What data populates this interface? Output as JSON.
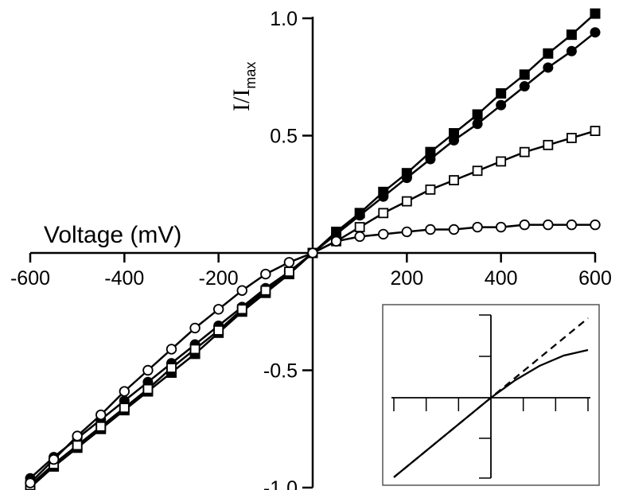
{
  "chart_data": [
    {
      "type": "line",
      "title": "",
      "xlabel": "Voltage (mV)",
      "ylabel_main": "I/I",
      "ylabel_sub": "max",
      "xlim": [
        -600,
        600
      ],
      "ylim": [
        -1.0,
        1.0
      ],
      "x_ticks": [
        -600,
        -400,
        -200,
        200,
        400,
        600
      ],
      "x_tick_labels": [
        "-600",
        "-400",
        "-200",
        "200",
        "400",
        "600"
      ],
      "y_ticks": [
        1.0,
        0.5,
        -0.5,
        -1.0
      ],
      "y_tick_labels": [
        "1.0",
        "0.5",
        "-0.5",
        "-1.0"
      ],
      "grid": false,
      "series": [
        {
          "marker": "filled-square",
          "x": [
            -600,
            -550,
            -500,
            -450,
            -400,
            -350,
            -300,
            -250,
            -200,
            -150,
            -100,
            -50,
            0,
            50,
            100,
            150,
            200,
            250,
            300,
            350,
            400,
            450,
            500,
            550,
            600
          ],
          "y": [
            -1.0,
            -0.91,
            -0.83,
            -0.75,
            -0.67,
            -0.59,
            -0.51,
            -0.43,
            -0.34,
            -0.25,
            -0.17,
            -0.09,
            0,
            0.09,
            0.17,
            0.26,
            0.34,
            0.43,
            0.51,
            0.59,
            0.68,
            0.76,
            0.85,
            0.93,
            1.02
          ]
        },
        {
          "marker": "filled-circle",
          "x": [
            -600,
            -550,
            -500,
            -450,
            -400,
            -350,
            -300,
            -250,
            -200,
            -150,
            -100,
            -50,
            0,
            50,
            100,
            150,
            200,
            250,
            300,
            350,
            400,
            450,
            500,
            550,
            600
          ],
          "y": [
            -0.96,
            -0.87,
            -0.79,
            -0.71,
            -0.63,
            -0.55,
            -0.47,
            -0.39,
            -0.31,
            -0.23,
            -0.15,
            -0.08,
            0,
            0.08,
            0.16,
            0.24,
            0.32,
            0.4,
            0.48,
            0.55,
            0.63,
            0.71,
            0.79,
            0.86,
            0.94
          ]
        },
        {
          "marker": "open-square",
          "x": [
            -600,
            -550,
            -500,
            -450,
            -400,
            -350,
            -300,
            -250,
            -200,
            -150,
            -100,
            -50,
            0,
            50,
            100,
            150,
            200,
            250,
            300,
            350,
            400,
            450,
            500,
            550,
            600
          ],
          "y": [
            -0.99,
            -0.9,
            -0.82,
            -0.74,
            -0.66,
            -0.58,
            -0.49,
            -0.41,
            -0.33,
            -0.24,
            -0.16,
            -0.08,
            0,
            0.05,
            0.11,
            0.17,
            0.22,
            0.27,
            0.31,
            0.35,
            0.39,
            0.43,
            0.46,
            0.49,
            0.52
          ]
        },
        {
          "marker": "open-circle",
          "x": [
            -600,
            -550,
            -500,
            -450,
            -400,
            -350,
            -300,
            -250,
            -200,
            -150,
            -100,
            -50,
            0,
            50,
            100,
            150,
            200,
            250,
            300,
            350,
            400,
            450,
            500,
            550,
            600
          ],
          "y": [
            -0.98,
            -0.88,
            -0.78,
            -0.69,
            -0.59,
            -0.5,
            -0.41,
            -0.32,
            -0.24,
            -0.16,
            -0.09,
            -0.04,
            0,
            0.05,
            0.07,
            0.08,
            0.09,
            0.1,
            0.1,
            0.11,
            0.11,
            0.12,
            0.12,
            0.12,
            0.12
          ]
        }
      ]
    },
    {
      "type": "line",
      "inset": true,
      "title": "",
      "xlabel": "",
      "ylabel": "",
      "series": [
        {
          "style": "dashed",
          "x": [
            -1,
            1
          ],
          "y": [
            -1,
            1
          ]
        },
        {
          "style": "solid",
          "x": [
            -1,
            -0.75,
            -0.5,
            -0.25,
            0,
            0.25,
            0.5,
            0.75,
            1
          ],
          "y": [
            -1.0,
            -0.75,
            -0.5,
            -0.25,
            0,
            0.22,
            0.4,
            0.53,
            0.6
          ]
        }
      ]
    }
  ]
}
